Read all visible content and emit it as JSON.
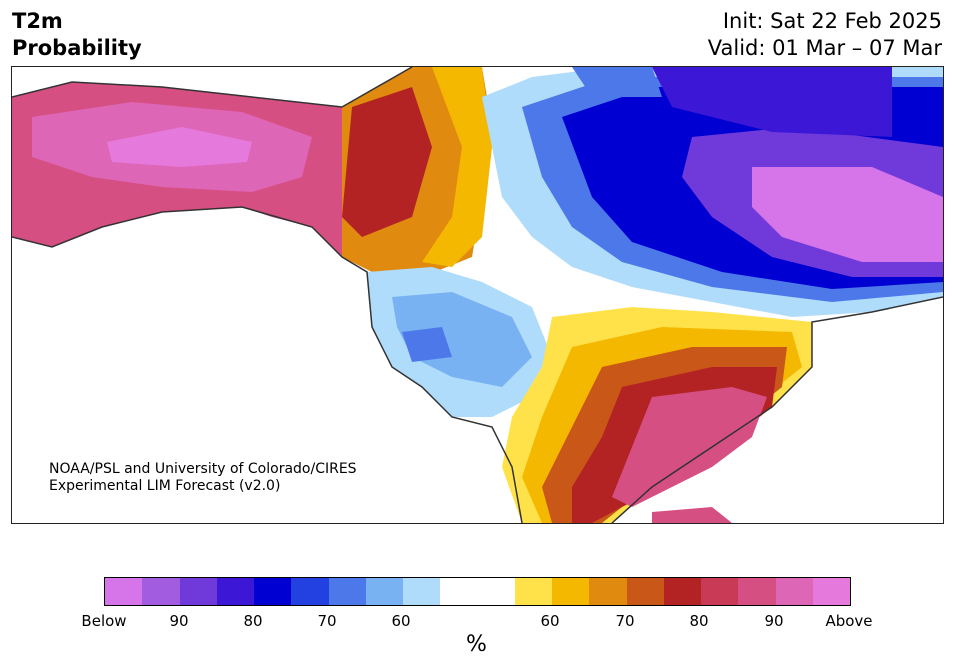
{
  "header": {
    "title_line1": "T2m",
    "title_line2": "Probability",
    "init": "Init: Sat 22 Feb 2025",
    "valid": "Valid: 01 Mar – 07 Mar"
  },
  "credit": {
    "line1": "NOAA/PSL and University of Colorado/CIRES",
    "line2": "Experimental LIM Forecast (v2.0)"
  },
  "colorbar": {
    "colors": [
      "#d674ea",
      "#a25ce0",
      "#7039da",
      "#3c18d6",
      "#0000d2",
      "#2241e0",
      "#4c78ea",
      "#78b2f2",
      "#b0dcfb",
      "#ffffff",
      "#ffffff",
      "#ffe24a",
      "#f5b800",
      "#e08a10",
      "#c85718",
      "#b42323",
      "#c83a55",
      "#d64f82",
      "#de66b6",
      "#e679dc"
    ],
    "ticks": [
      "Below",
      "90",
      "80",
      "70",
      "60",
      "60",
      "70",
      "80",
      "90",
      "Above"
    ],
    "unit": "%"
  }
}
